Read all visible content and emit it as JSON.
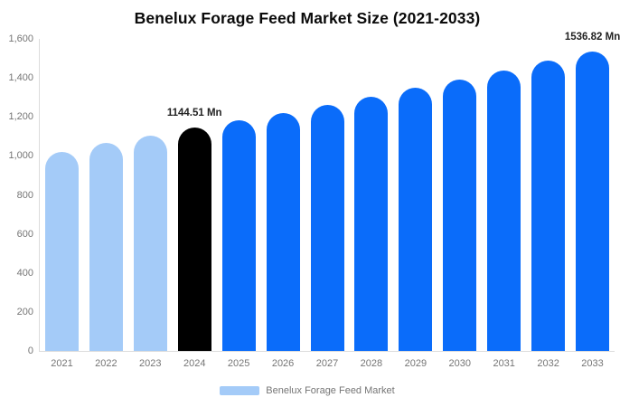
{
  "title": "Benelux Forage Feed Market Size (2021-2033)",
  "colors": {
    "historical": "#A4CBF8",
    "base_year": "#000000",
    "forecast": "#0A6CFA",
    "axis_line": "#DCDCDC",
    "tick_text": "#757575",
    "title_text": "#0A0A0A",
    "value_label_text": "#222222"
  },
  "legend": {
    "label": "Benelux Forage Feed Market"
  },
  "chart_data": {
    "type": "bar",
    "title": "Benelux Forage Feed Market Size (2021-2033)",
    "categories": [
      "2021",
      "2022",
      "2023",
      "2024",
      "2025",
      "2026",
      "2027",
      "2028",
      "2029",
      "2030",
      "2031",
      "2032",
      "2033"
    ],
    "values": [
      1020,
      1065,
      1104,
      1144.51,
      1183,
      1222,
      1263,
      1305,
      1348,
      1393,
      1439,
      1487,
      1536.82
    ],
    "bar_roles": [
      "historical",
      "historical",
      "historical",
      "base_year",
      "forecast",
      "forecast",
      "forecast",
      "forecast",
      "forecast",
      "forecast",
      "forecast",
      "forecast",
      "forecast"
    ],
    "annotations": [
      {
        "category": "2024",
        "text": "1144.51 Mn"
      },
      {
        "category": "2033",
        "text": "1536.82 Mn"
      }
    ],
    "xlabel": "",
    "ylabel": "",
    "ylim": [
      0,
      1600
    ],
    "yticks": [
      {
        "value": 0,
        "label": "0"
      },
      {
        "value": 200,
        "label": "200"
      },
      {
        "value": 400,
        "label": "400"
      },
      {
        "value": 600,
        "label": "600"
      },
      {
        "value": 800,
        "label": "800"
      },
      {
        "value": 1000,
        "label": "1,000"
      },
      {
        "value": 1200,
        "label": "1,200"
      },
      {
        "value": 1400,
        "label": "1,400"
      },
      {
        "value": 1600,
        "label": "1,600"
      }
    ],
    "grid": false,
    "legend_position": "bottom",
    "legend_entries": [
      {
        "label": "Benelux Forage Feed Market",
        "color_role": "historical"
      }
    ]
  }
}
